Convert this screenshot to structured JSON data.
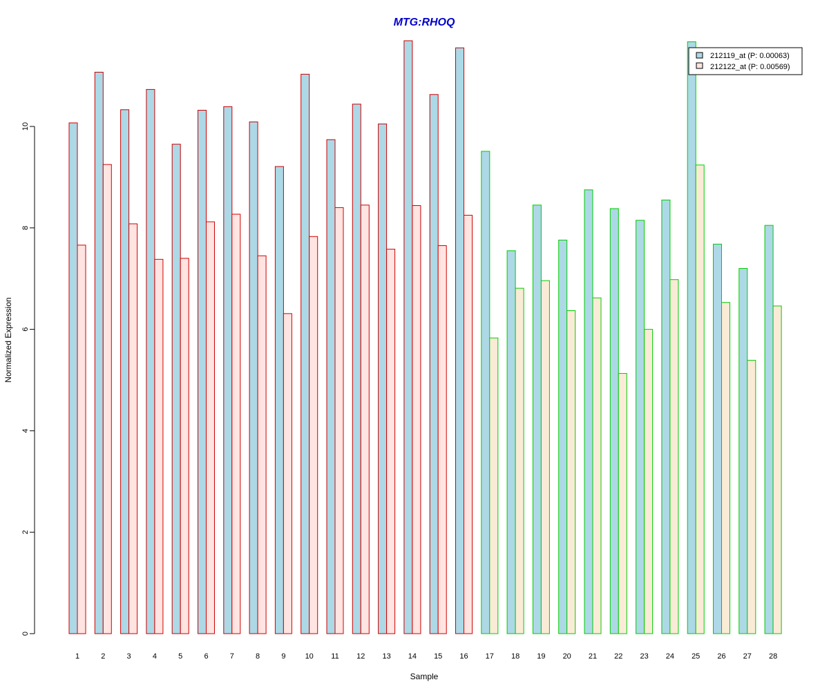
{
  "chart_data": {
    "type": "bar",
    "title": "MTG:RHOQ",
    "xlabel": "Sample",
    "ylabel": "Normalized Expression",
    "ylim": [
      0,
      12
    ],
    "yticks": [
      "0",
      "2",
      "4",
      "6",
      "8",
      "10"
    ],
    "categories": [
      "1",
      "2",
      "3",
      "4",
      "5",
      "6",
      "7",
      "8",
      "9",
      "10",
      "11",
      "12",
      "13",
      "14",
      "15",
      "16",
      "17",
      "18",
      "19",
      "20",
      "21",
      "22",
      "23",
      "24",
      "25",
      "26",
      "27",
      "28"
    ],
    "series": [
      {
        "name": "212119_at (P: 0.00063)",
        "fill": "#add8e6",
        "values": [
          10.07,
          11.07,
          10.33,
          10.73,
          9.65,
          10.32,
          10.39,
          10.09,
          9.21,
          11.03,
          9.74,
          10.44,
          10.05,
          11.69,
          10.63,
          11.55,
          9.51,
          7.55,
          8.45,
          7.76,
          8.75,
          8.38,
          8.15,
          8.55,
          11.67,
          7.68,
          7.2,
          8.05
        ]
      },
      {
        "name": "212122_at (P: 0.00569)",
        "fill_group_a": "#ffe4e1",
        "fill_group_b": "#faebd7",
        "values": [
          7.66,
          9.25,
          8.08,
          7.38,
          7.4,
          8.12,
          8.27,
          7.45,
          6.31,
          7.83,
          8.4,
          8.45,
          7.58,
          8.44,
          7.65,
          8.25,
          5.83,
          6.81,
          6.96,
          6.37,
          6.62,
          5.13,
          6.0,
          6.98,
          9.24,
          6.53,
          5.39,
          6.46
        ]
      }
    ],
    "group_border_colors": [
      "#cc0000",
      "#00cc00"
    ],
    "group_sizes": [
      16,
      12
    ],
    "title_color": "#0000cc",
    "legend_position": "top-right",
    "grid": false
  }
}
